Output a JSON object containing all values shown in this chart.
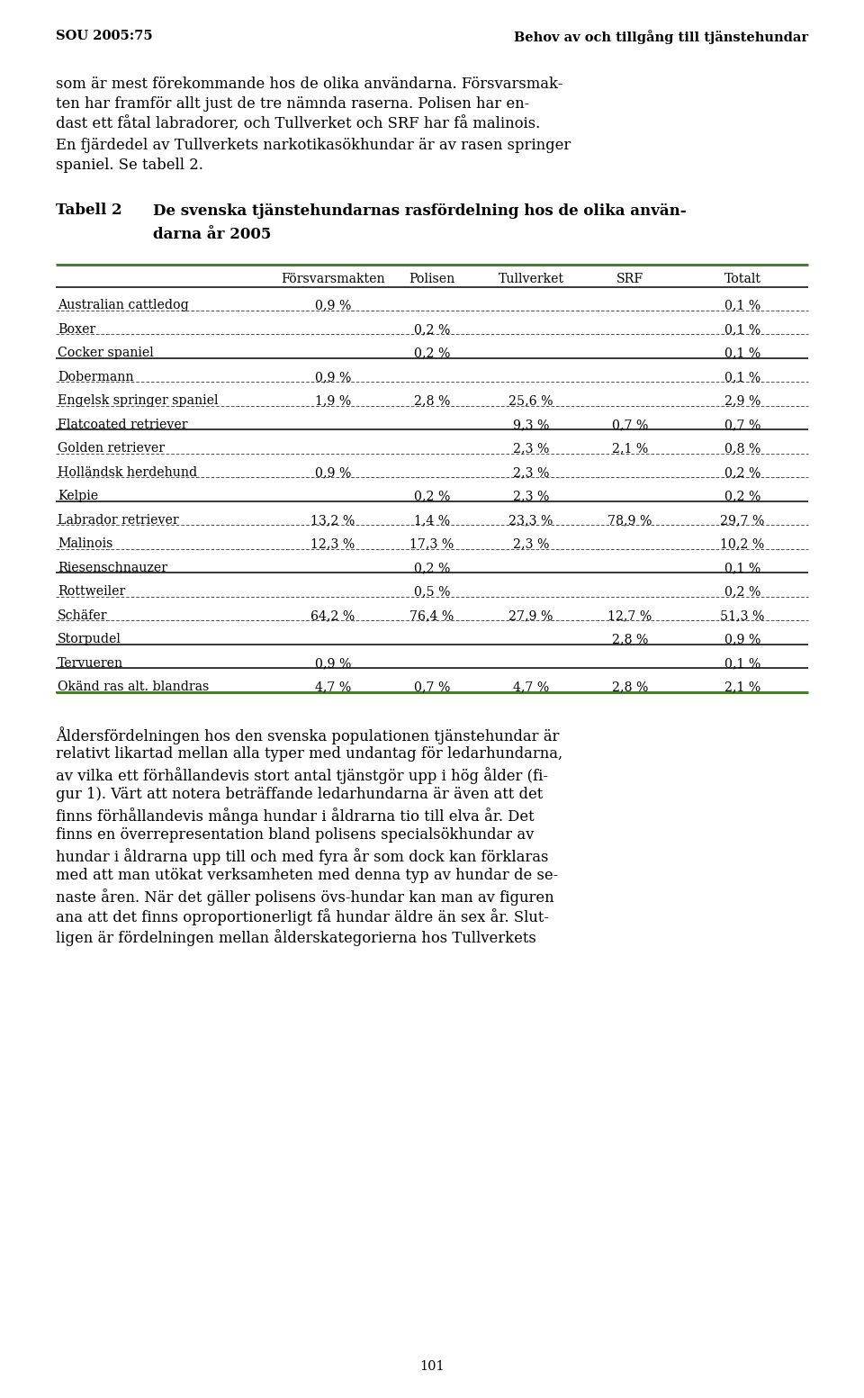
{
  "header_left": "SOU 2005:75",
  "header_right": "Behov av och tillgång till tjänstehundar",
  "col_headers": [
    "Försvarsmakten",
    "Polisen",
    "Tullverket",
    "SRF",
    "Totalt"
  ],
  "rows": [
    [
      "Australian cattledog",
      "0,9 %",
      "",
      "",
      "",
      "0,1 %"
    ],
    [
      "Boxer",
      "",
      "0,2 %",
      "",
      "",
      "0,1 %"
    ],
    [
      "Cocker spaniel",
      "",
      "0,2 %",
      "",
      "",
      "0,1 %"
    ],
    [
      "Dobermann",
      "0,9 %",
      "",
      "",
      "",
      "0,1 %"
    ],
    [
      "Engelsk springer spaniel",
      "1,9 %",
      "2,8 %",
      "25,6 %",
      "",
      "2,9 %"
    ],
    [
      "Flatcoated retriever",
      "",
      "",
      "9,3 %",
      "0,7 %",
      "0,7 %"
    ],
    [
      "Golden retriever",
      "",
      "",
      "2,3 %",
      "2,1 %",
      "0,8 %"
    ],
    [
      "Holländsk herdehund",
      "0,9 %",
      "",
      "2,3 %",
      "",
      "0,2 %"
    ],
    [
      "Kelpie",
      "",
      "0,2 %",
      "2,3 %",
      "",
      "0,2 %"
    ],
    [
      "Labrador retriever",
      "13,2 %",
      "1,4 %",
      "23,3 %",
      "78,9 %",
      "29,7 %"
    ],
    [
      "Malinois",
      "12,3 %",
      "17,3 %",
      "2,3 %",
      "",
      "10,2 %"
    ],
    [
      "Riesenschnauzer",
      "",
      "0,2 %",
      "",
      "",
      "0,1 %"
    ],
    [
      "Rottweiler",
      "",
      "0,5 %",
      "",
      "",
      "0,2 %"
    ],
    [
      "Schäfer",
      "64,2 %",
      "76,4 %",
      "27,9 %",
      "12,7 %",
      "51,3 %"
    ],
    [
      "Storpudel",
      "",
      "",
      "",
      "2,8 %",
      "0,9 %"
    ],
    [
      "Tervueren",
      "0,9 %",
      "",
      "",
      "",
      "0,1 %"
    ],
    [
      "Okänd ras alt. blandras",
      "4,7 %",
      "0,7 %",
      "4,7 %",
      "2,8 %",
      "2,1 %"
    ]
  ],
  "thick_lines_after": [
    2,
    5,
    8,
    11,
    14,
    15,
    16
  ],
  "page_number": "101",
  "green_line_color": "#4a7c2f",
  "background_color": "#ffffff",
  "text_color": "#000000",
  "top_para_lines": [
    "som är mest förekommande hos de olika användarna. Försvarsmak-",
    "ten har framför allt just de tre nämnda raserna. Polisen har en-",
    "dast ett fåtal labradorer, och Tullverket och SRF har få malinois.",
    "En fjärdedel av Tullverkets narkotikasökhundar är av rasen springer",
    "spaniel. Se tabell 2."
  ],
  "table_label": "Tabell 2",
  "table_title_line1": "De svenska tjänstehundarnas rasfördelning hos de olika använ-",
  "table_title_line2": "darna år 2005",
  "bottom_para_lines": [
    "Åldersfördelningen hos den svenska populationen tjänstehundar är",
    "relativt likartad mellan alla typer med undantag för ledarhundarna,",
    "av vilka ett förhållandevis stort antal tjänstgör upp i hög ålder (fi-",
    "gur 1). Värt att notera beträffande ledarhundarna är även att det",
    "finns förhållandevis många hundar i åldrarna tio till elva år. Det",
    "finns en överrepresentation bland polisens specialsökhundar av",
    "hundar i åldrarna upp till och med fyra år som dock kan förklaras",
    "med att man utökat verksamheten med denna typ av hundar de se-",
    "naste åren. När det gäller polisens övs-hundar kan man av figuren",
    "ana att det finns oproportionerligt få hundar äldre än sex år. Slut-",
    "ligen är fördelningen mellan ålderskategorierna hos Tullverkets"
  ]
}
